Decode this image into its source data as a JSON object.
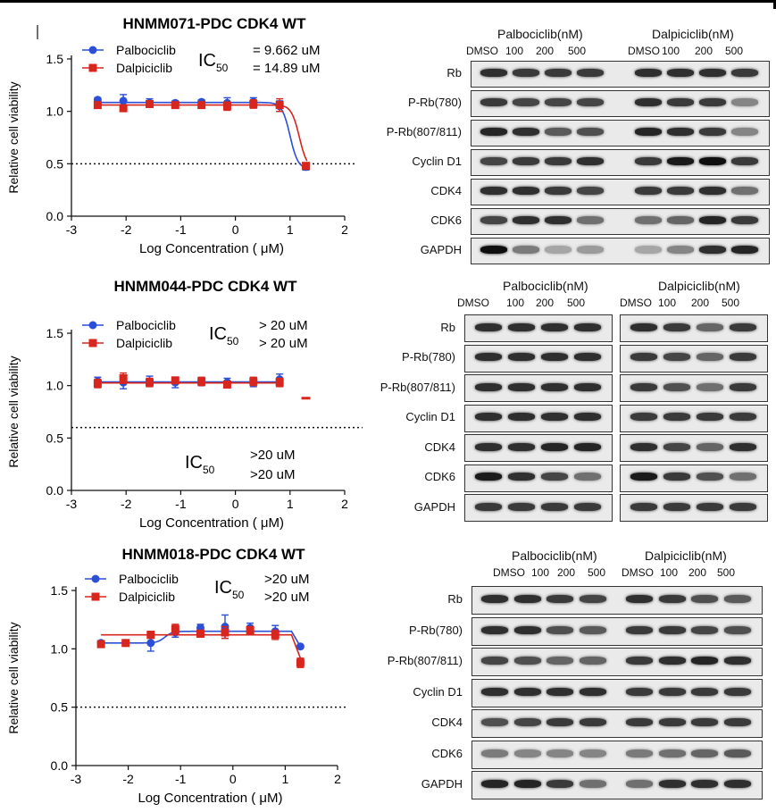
{
  "colors": {
    "palbociclib": "#2b4fd6",
    "dalpiciclib": "#d7261e",
    "axis": "#111111",
    "threshold": "#111111"
  },
  "panels": [
    {
      "title": "HNMM071-PDC CDK4 WT",
      "ic50_symbol": "IC",
      "ic50_sub": "50",
      "ic50_palbo": "= 9.662 uM",
      "ic50_dalpi": "= 14.89 uM",
      "legend": [
        "Palbociclib",
        "Dalpiciclib"
      ],
      "blot": {
        "groups": [
          "Palbociclib(nM)",
          "Dalpiciclib(nM)"
        ],
        "lanes": [
          "DMSO",
          "100",
          "200",
          "500",
          "DMSO",
          "100",
          "200",
          "500"
        ],
        "rows": [
          {
            "label": "Rb",
            "intensity": [
              0.85,
              0.8,
              0.8,
              0.8,
              0.85,
              0.85,
              0.85,
              0.8
            ]
          },
          {
            "label": "P-Rb(780)",
            "intensity": [
              0.8,
              0.75,
              0.75,
              0.75,
              0.85,
              0.8,
              0.8,
              0.45
            ]
          },
          {
            "label": "P-Rb(807/811)",
            "intensity": [
              0.9,
              0.85,
              0.65,
              0.7,
              0.9,
              0.85,
              0.8,
              0.45
            ]
          },
          {
            "label": "Cyclin D1",
            "intensity": [
              0.75,
              0.8,
              0.8,
              0.85,
              0.8,
              0.95,
              1.0,
              0.8
            ]
          },
          {
            "label": "CDK4",
            "intensity": [
              0.85,
              0.85,
              0.8,
              0.75,
              0.8,
              0.8,
              0.85,
              0.55
            ]
          },
          {
            "label": "CDK6",
            "intensity": [
              0.75,
              0.85,
              0.85,
              0.55,
              0.55,
              0.6,
              0.9,
              0.8
            ]
          },
          {
            "label": "GAPDH",
            "intensity": [
              1.0,
              0.5,
              0.3,
              0.35,
              0.3,
              0.45,
              0.85,
              0.9
            ]
          }
        ]
      }
    },
    {
      "title": "HNMM044-PDC CDK4 WT",
      "ic50_symbol": "IC",
      "ic50_sub": "50",
      "ic50_palbo": "> 20 uM",
      "ic50_dalpi": "> 20 uM",
      "ic50_inner_palbo": ">20 uM",
      "ic50_inner_dalpi": ">20 uM",
      "legend": [
        "Palbociclib",
        "Dalpiciclib"
      ],
      "blot": {
        "groups": [
          "Palbociclib(nM)",
          "Dalpiciclib(nM)"
        ],
        "lanes": [
          "DMSO",
          "100",
          "200",
          "500",
          "DMSO",
          "100",
          "200",
          "500"
        ],
        "rows": [
          {
            "label": "Rb",
            "intensity": [
              0.85,
              0.85,
              0.85,
              0.85,
              0.85,
              0.8,
              0.6,
              0.8
            ]
          },
          {
            "label": "P-Rb(780)",
            "intensity": [
              0.85,
              0.85,
              0.85,
              0.85,
              0.8,
              0.75,
              0.6,
              0.8
            ]
          },
          {
            "label": "P-Rb(807/811)",
            "intensity": [
              0.85,
              0.85,
              0.85,
              0.85,
              0.8,
              0.7,
              0.55,
              0.8
            ]
          },
          {
            "label": "Cyclin D1",
            "intensity": [
              0.85,
              0.85,
              0.85,
              0.85,
              0.8,
              0.8,
              0.8,
              0.8
            ]
          },
          {
            "label": "CDK4",
            "intensity": [
              0.85,
              0.85,
              0.9,
              0.9,
              0.85,
              0.75,
              0.6,
              0.85
            ]
          },
          {
            "label": "CDK6",
            "intensity": [
              0.95,
              0.85,
              0.75,
              0.55,
              0.95,
              0.8,
              0.7,
              0.55
            ]
          },
          {
            "label": "GAPDH",
            "intensity": [
              0.8,
              0.8,
              0.8,
              0.8,
              0.8,
              0.8,
              0.8,
              0.8
            ]
          }
        ]
      }
    },
    {
      "title": "HNMM018-PDC CDK4  WT",
      "ic50_symbol": "IC",
      "ic50_sub": "50",
      "ic50_palbo": ">20 uM",
      "ic50_dalpi": ">20 uM",
      "legend": [
        "Palbociclib",
        "Dalpiciclib"
      ],
      "blot": {
        "groups": [
          "Palbociclib(nM)",
          "Dalpiciclib(nM)"
        ],
        "lanes": [
          "DMSO",
          "100",
          "200",
          "500",
          "DMSO",
          "100",
          "200",
          "500"
        ],
        "rows": [
          {
            "label": "Rb",
            "intensity": [
              0.85,
              0.85,
              0.8,
              0.75,
              0.85,
              0.8,
              0.7,
              0.65
            ]
          },
          {
            "label": "P-Rb(780)",
            "intensity": [
              0.85,
              0.85,
              0.7,
              0.65,
              0.8,
              0.8,
              0.75,
              0.7
            ]
          },
          {
            "label": "P-Rb(807/811)",
            "intensity": [
              0.75,
              0.7,
              0.6,
              0.6,
              0.8,
              0.85,
              0.9,
              0.85
            ]
          },
          {
            "label": "Cyclin D1",
            "intensity": [
              0.85,
              0.85,
              0.85,
              0.85,
              0.8,
              0.8,
              0.8,
              0.8
            ]
          },
          {
            "label": "CDK4",
            "intensity": [
              0.7,
              0.75,
              0.8,
              0.8,
              0.8,
              0.8,
              0.8,
              0.8
            ]
          },
          {
            "label": "CDK6",
            "intensity": [
              0.5,
              0.45,
              0.45,
              0.45,
              0.5,
              0.55,
              0.6,
              0.65
            ]
          },
          {
            "label": "GAPDH",
            "intensity": [
              0.9,
              0.9,
              0.8,
              0.55,
              0.55,
              0.85,
              0.85,
              0.85
            ]
          }
        ]
      }
    }
  ],
  "chart_data": [
    {
      "type": "scatter",
      "title": "HNMM071-PDC CDK4 WT",
      "xlabel": "Log Concentration ( μM)",
      "ylabel": "Relative cell viability",
      "xlim": [
        -3,
        2
      ],
      "ylim": [
        0.0,
        1.5
      ],
      "xticks": [
        "-3",
        "-2",
        "-1",
        "0",
        "1",
        "2"
      ],
      "yticks": [
        "0.0",
        "0.5",
        "1.0",
        "1.5"
      ],
      "threshold": 0.5,
      "series": [
        {
          "name": "Palbociclib",
          "x": [
            -2.52,
            -2.05,
            -1.57,
            -1.1,
            -0.62,
            -0.15,
            0.33,
            0.81,
            1.29
          ],
          "y": [
            1.11,
            1.1,
            1.08,
            1.08,
            1.09,
            1.08,
            1.09,
            1.05,
            0.47
          ],
          "err": [
            0.02,
            0.06,
            0.04,
            0.02,
            0.02,
            0.05,
            0.04,
            0.05,
            0.03
          ],
          "curve": {
            "top": 1.085,
            "bottom": 0.45,
            "logIC50": 1.0,
            "hill": 6
          }
        },
        {
          "name": "Dalpiciclib",
          "x": [
            -2.52,
            -2.05,
            -1.57,
            -1.1,
            -0.62,
            -0.15,
            0.33,
            0.81,
            1.29
          ],
          "y": [
            1.06,
            1.03,
            1.07,
            1.06,
            1.06,
            1.05,
            1.07,
            1.06,
            0.48
          ],
          "err": [
            0.02,
            0.03,
            0.03,
            0.02,
            0.02,
            0.04,
            0.04,
            0.06,
            0.03
          ],
          "curve": {
            "top": 1.06,
            "bottom": 0.45,
            "logIC50": 1.17,
            "hill": 6
          }
        }
      ]
    },
    {
      "type": "scatter",
      "title": "HNMM044-PDC CDK4 WT",
      "xlabel": "Log Concentration ( μM)",
      "ylabel": "Relative cell viability",
      "xlim": [
        -3,
        2
      ],
      "ylim": [
        0.0,
        1.5
      ],
      "xticks": [
        "-3",
        "-2",
        "-1",
        "0",
        "1",
        "2"
      ],
      "yticks": [
        "0.0",
        "0.5",
        "1.0",
        "1.5"
      ],
      "threshold": 0.6,
      "series": [
        {
          "name": "Palbociclib",
          "x": [
            -2.52,
            -2.05,
            -1.57,
            -1.1,
            -0.62,
            -0.15,
            0.33,
            0.81
          ],
          "y": [
            1.04,
            1.03,
            1.04,
            1.03,
            1.03,
            1.03,
            1.03,
            1.06
          ],
          "err": [
            0.04,
            0.06,
            0.05,
            0.05,
            0.03,
            0.04,
            0.04,
            0.05
          ],
          "curve": {
            "flat": 1.035,
            "x0": -2.52,
            "x1": 0.81
          }
        },
        {
          "name": "Dalpiciclib",
          "x": [
            -2.52,
            -2.05,
            -1.57,
            -1.1,
            -0.62,
            -0.15,
            0.33,
            0.81,
            1.29
          ],
          "y": [
            1.02,
            1.07,
            1.03,
            1.05,
            1.04,
            1.01,
            1.04,
            1.03,
            0.88
          ],
          "err": [
            0.04,
            0.05,
            0.04,
            0.03,
            0.04,
            0.03,
            0.04,
            0.04,
            0.0
          ],
          "curve": {
            "flat": 1.025,
            "x0": -2.52,
            "x1": 0.81
          }
        }
      ]
    },
    {
      "type": "scatter",
      "title": "HNMM018-PDC CDK4  WT",
      "xlabel": "Log Concentration ( μM)",
      "ylabel": "Relative cell viability",
      "xlim": [
        -3,
        2
      ],
      "ylim": [
        0.0,
        1.5
      ],
      "xticks": [
        "-3",
        "-2",
        "-1",
        "0",
        "1",
        "2"
      ],
      "yticks": [
        "0.0",
        "0.5",
        "1.0",
        "1.5"
      ],
      "threshold": 0.5,
      "series": [
        {
          "name": "Palbociclib",
          "x": [
            -2.52,
            -2.05,
            -1.57,
            -1.1,
            -0.62,
            -0.15,
            0.33,
            0.81,
            1.29
          ],
          "y": [
            1.05,
            1.05,
            1.05,
            1.14,
            1.18,
            1.19,
            1.18,
            1.15,
            1.02
          ],
          "err": [
            0.02,
            0.02,
            0.07,
            0.04,
            0.03,
            0.1,
            0.04,
            0.05,
            0.0
          ],
          "curve": {
            "type": "step",
            "low": 1.05,
            "high": 1.15,
            "x0": -2.52,
            "x1": 1.12
          }
        },
        {
          "name": "Dalpiciclib",
          "x": [
            -2.52,
            -2.05,
            -1.57,
            -1.1,
            -0.62,
            -0.15,
            0.33,
            0.81,
            1.29
          ],
          "y": [
            1.04,
            1.05,
            1.12,
            1.17,
            1.13,
            1.14,
            1.16,
            1.12,
            0.88
          ],
          "err": [
            0.02,
            0.02,
            0.03,
            0.04,
            0.03,
            0.05,
            0.03,
            0.04,
            0.04
          ],
          "curve": {
            "flat": 1.12,
            "x0": -2.52,
            "x1": 1.12,
            "drop": 0.92
          }
        }
      ]
    }
  ]
}
